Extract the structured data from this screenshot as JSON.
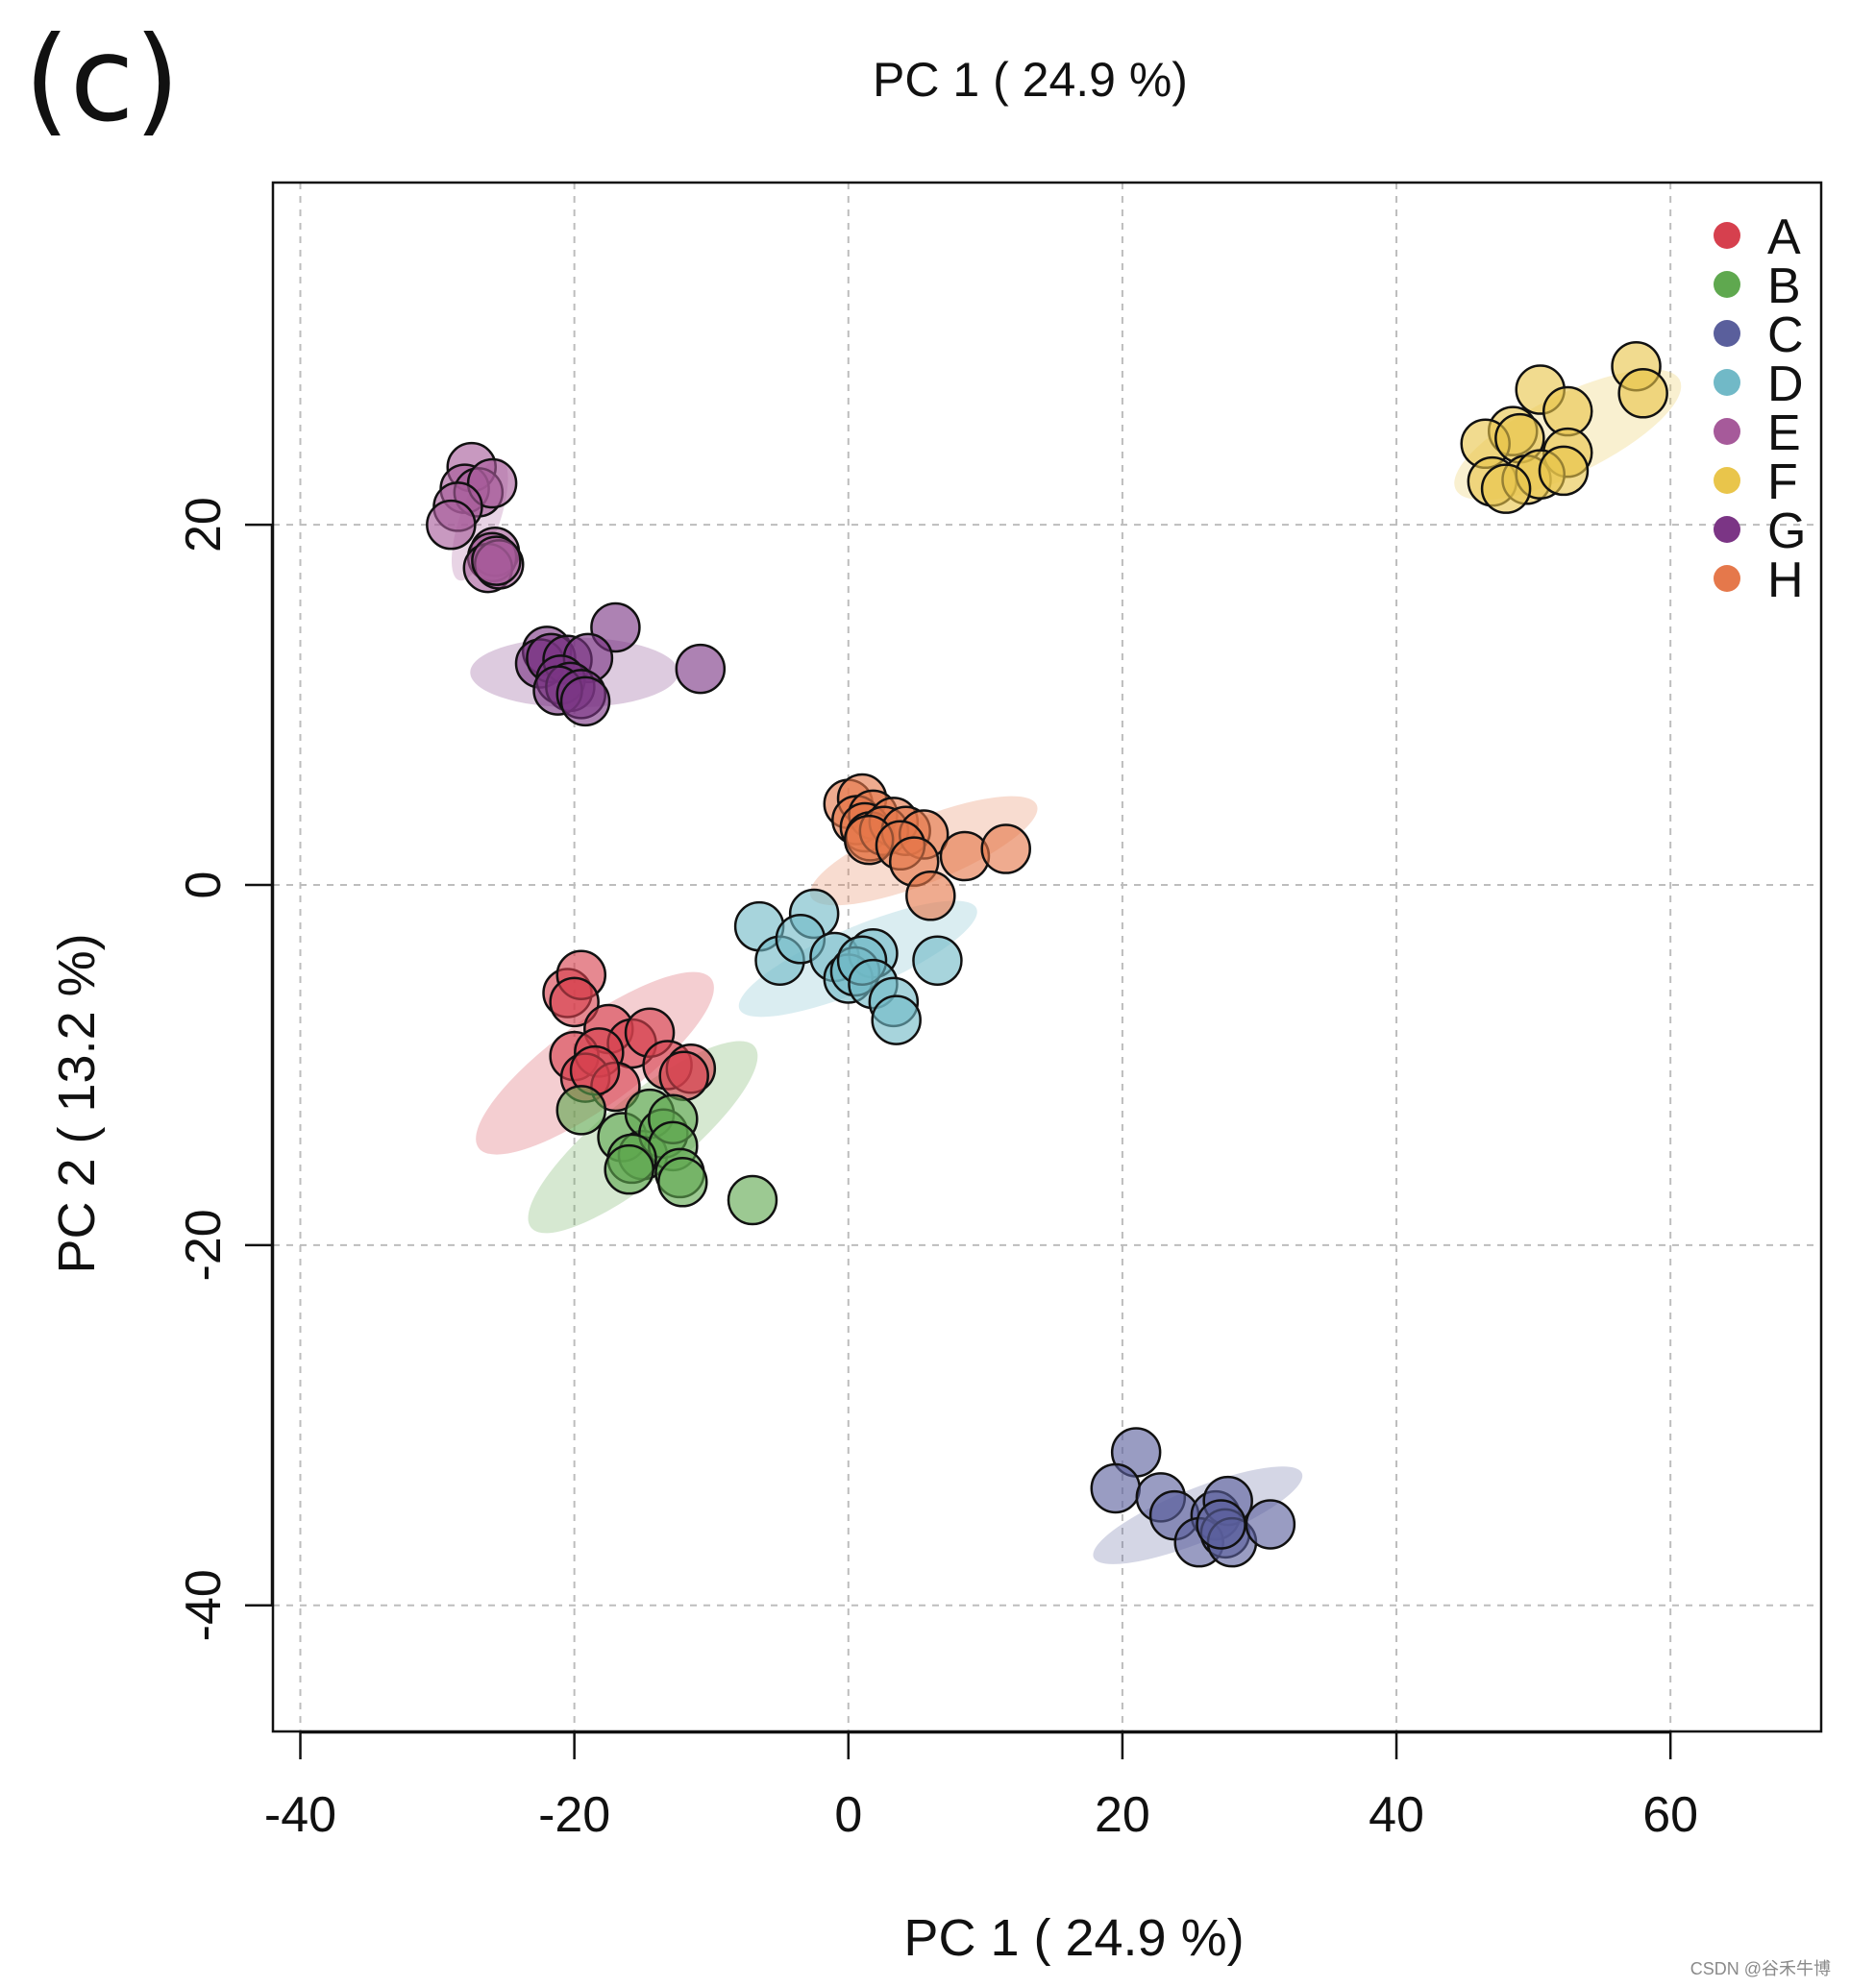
{
  "figure": {
    "panel_label": "(c)",
    "top_title": "PC 1 ( 24.9 %)",
    "watermark": "CSDN @谷禾牛博"
  },
  "colors": {
    "A": "#d6404e",
    "B": "#5fa84f",
    "C": "#5a5f9c",
    "D": "#71b9c7",
    "E": "#a65a9a",
    "F": "#e9c54b",
    "G": "#7b3585",
    "H": "#e5784b"
  },
  "chart_data": {
    "type": "scatter",
    "title": "PC 1 ( 24.9 %)",
    "xlabel": "PC 1 ( 24.9 %)",
    "ylabel": "PC 2 ( 13.2 %)",
    "xlim": [
      -42,
      71
    ],
    "ylim": [
      -47,
      39
    ],
    "xticks": [
      -40,
      -20,
      0,
      20,
      40,
      60
    ],
    "yticks": [
      -40,
      -20,
      0,
      20
    ],
    "x_tick_labels": [
      "-40",
      "-20",
      "0",
      "20",
      "40",
      "60"
    ],
    "y_tick_labels": [
      "-40",
      "-20",
      "0",
      "20"
    ],
    "grid": true,
    "legend": {
      "position": "top-right",
      "entries": [
        "A",
        "B",
        "C",
        "D",
        "E",
        "F",
        "G",
        "H"
      ]
    },
    "series": [
      {
        "name": "A",
        "points": [
          [
            -20.5,
            -6
          ],
          [
            -19.5,
            -5
          ],
          [
            -20,
            -6.5
          ],
          [
            -17.5,
            -8
          ],
          [
            -15.8,
            -8.8
          ],
          [
            -14.5,
            -8.2
          ],
          [
            -13.2,
            -10
          ],
          [
            -11.5,
            -10.2
          ],
          [
            -12,
            -10.6
          ],
          [
            -20,
            -9.5
          ],
          [
            -18.2,
            -9.3
          ],
          [
            -19.2,
            -10.7
          ],
          [
            -17,
            -11.2
          ],
          [
            -18.5,
            -10.3
          ]
        ],
        "ellipse": {
          "cx": -18.5,
          "cy": -9.9,
          "rx": 10.5,
          "ry": 3.1,
          "angle_deg": 36
        }
      },
      {
        "name": "B",
        "points": [
          [
            -19.5,
            -12.5
          ],
          [
            -16.5,
            -14
          ],
          [
            -15,
            -15
          ],
          [
            -14.5,
            -12.7
          ],
          [
            -13.5,
            -13.8
          ],
          [
            -12.8,
            -13
          ],
          [
            -12.8,
            -14.5
          ],
          [
            -15.8,
            -15.2
          ],
          [
            -16,
            -15.8
          ],
          [
            -12.3,
            -16
          ],
          [
            -12.1,
            -16.5
          ],
          [
            -7,
            -17.5
          ]
        ],
        "ellipse": {
          "cx": -15.0,
          "cy": -14.0,
          "rx": 10.5,
          "ry": 3.0,
          "angle_deg": 39
        }
      },
      {
        "name": "C",
        "points": [
          [
            21,
            -31.5
          ],
          [
            19.5,
            -33.5
          ],
          [
            22.8,
            -34
          ],
          [
            23.8,
            -35
          ],
          [
            26.8,
            -35
          ],
          [
            27.7,
            -34.2
          ],
          [
            25.6,
            -36.5
          ],
          [
            27.5,
            -36
          ],
          [
            28,
            -36.5
          ],
          [
            30.8,
            -35.5
          ],
          [
            27.2,
            -35.5
          ]
        ],
        "ellipse": {
          "cx": 25.5,
          "cy": -35.0,
          "rx": 8.2,
          "ry": 1.95,
          "angle_deg": 22
        }
      },
      {
        "name": "D",
        "points": [
          [
            -6.5,
            -2.3
          ],
          [
            -2.5,
            -1.6
          ],
          [
            -5,
            -4.2
          ],
          [
            -3.5,
            -3
          ],
          [
            -1,
            -4
          ],
          [
            1.8,
            -3.8
          ],
          [
            0,
            -5.2
          ],
          [
            0.5,
            -4.8
          ],
          [
            1,
            -4.2
          ],
          [
            1.8,
            -5.5
          ],
          [
            3.3,
            -6.5
          ],
          [
            3.5,
            -7.5
          ],
          [
            6.5,
            -4.2
          ]
        ],
        "ellipse": {
          "cx": 0.7,
          "cy": -4.1,
          "rx": 9.4,
          "ry": 2.3,
          "angle_deg": 23
        }
      },
      {
        "name": "E",
        "points": [
          [
            -27.5,
            23.2
          ],
          [
            -28,
            22
          ],
          [
            -27,
            21.8
          ],
          [
            -26,
            22.3
          ],
          [
            -28.5,
            21
          ],
          [
            -29,
            20
          ],
          [
            -25.8,
            18.5
          ],
          [
            -26,
            18.2
          ],
          [
            -26.3,
            17.6
          ],
          [
            -25.5,
            17.8
          ],
          [
            -25.7,
            18
          ]
        ],
        "ellipse": {
          "cx": -26.9,
          "cy": 20.3,
          "rx": 4.7,
          "ry": 1.45,
          "angle_deg": 71
        }
      },
      {
        "name": "F",
        "points": [
          [
            50.5,
            27.5
          ],
          [
            57.5,
            28.8
          ],
          [
            58,
            27.3
          ],
          [
            52.5,
            26.3
          ],
          [
            48.5,
            25.2
          ],
          [
            46.5,
            24.5
          ],
          [
            49,
            24.8
          ],
          [
            52.5,
            24
          ],
          [
            47,
            22.4
          ],
          [
            49.5,
            22.5
          ],
          [
            50.5,
            22.8
          ],
          [
            52.2,
            23
          ],
          [
            48,
            22
          ]
        ],
        "ellipse": {
          "cx": 52.5,
          "cy": 25.0,
          "rx": 9.1,
          "ry": 2.9,
          "angle_deg": 26
        }
      },
      {
        "name": "G",
        "points": [
          [
            -17,
            14.3
          ],
          [
            -10.8,
            12
          ],
          [
            -22,
            13
          ],
          [
            -22.5,
            12.3
          ],
          [
            -21.7,
            12.6
          ],
          [
            -20.5,
            12.5
          ],
          [
            -19,
            12.6
          ],
          [
            -21,
            11.4
          ],
          [
            -20.3,
            11
          ],
          [
            -21.2,
            10.8
          ],
          [
            -19.5,
            10.6
          ],
          [
            -19.2,
            10.2
          ]
        ],
        "ellipse": {
          "cx": -20.0,
          "cy": 11.8,
          "rx": 7.6,
          "ry": 2.55,
          "angle_deg": 0
        }
      },
      {
        "name": "H",
        "points": [
          [
            0,
            4.5
          ],
          [
            1,
            4.8
          ],
          [
            0.6,
            3.6
          ],
          [
            1.8,
            3.9
          ],
          [
            1.2,
            3.2
          ],
          [
            1.6,
            2.7
          ],
          [
            3.3,
            3.5
          ],
          [
            2.6,
            3
          ],
          [
            4.2,
            3
          ],
          [
            5.5,
            2.8
          ],
          [
            1.5,
            2.5
          ],
          [
            3.8,
            2.2
          ],
          [
            8.5,
            1.6
          ],
          [
            11.5,
            2
          ],
          [
            4.8,
            1.3
          ],
          [
            6,
            -0.6
          ]
        ],
        "ellipse": {
          "cx": 5.5,
          "cy": 1.9,
          "rx": 8.9,
          "ry": 2.35,
          "angle_deg": 22
        }
      }
    ]
  }
}
